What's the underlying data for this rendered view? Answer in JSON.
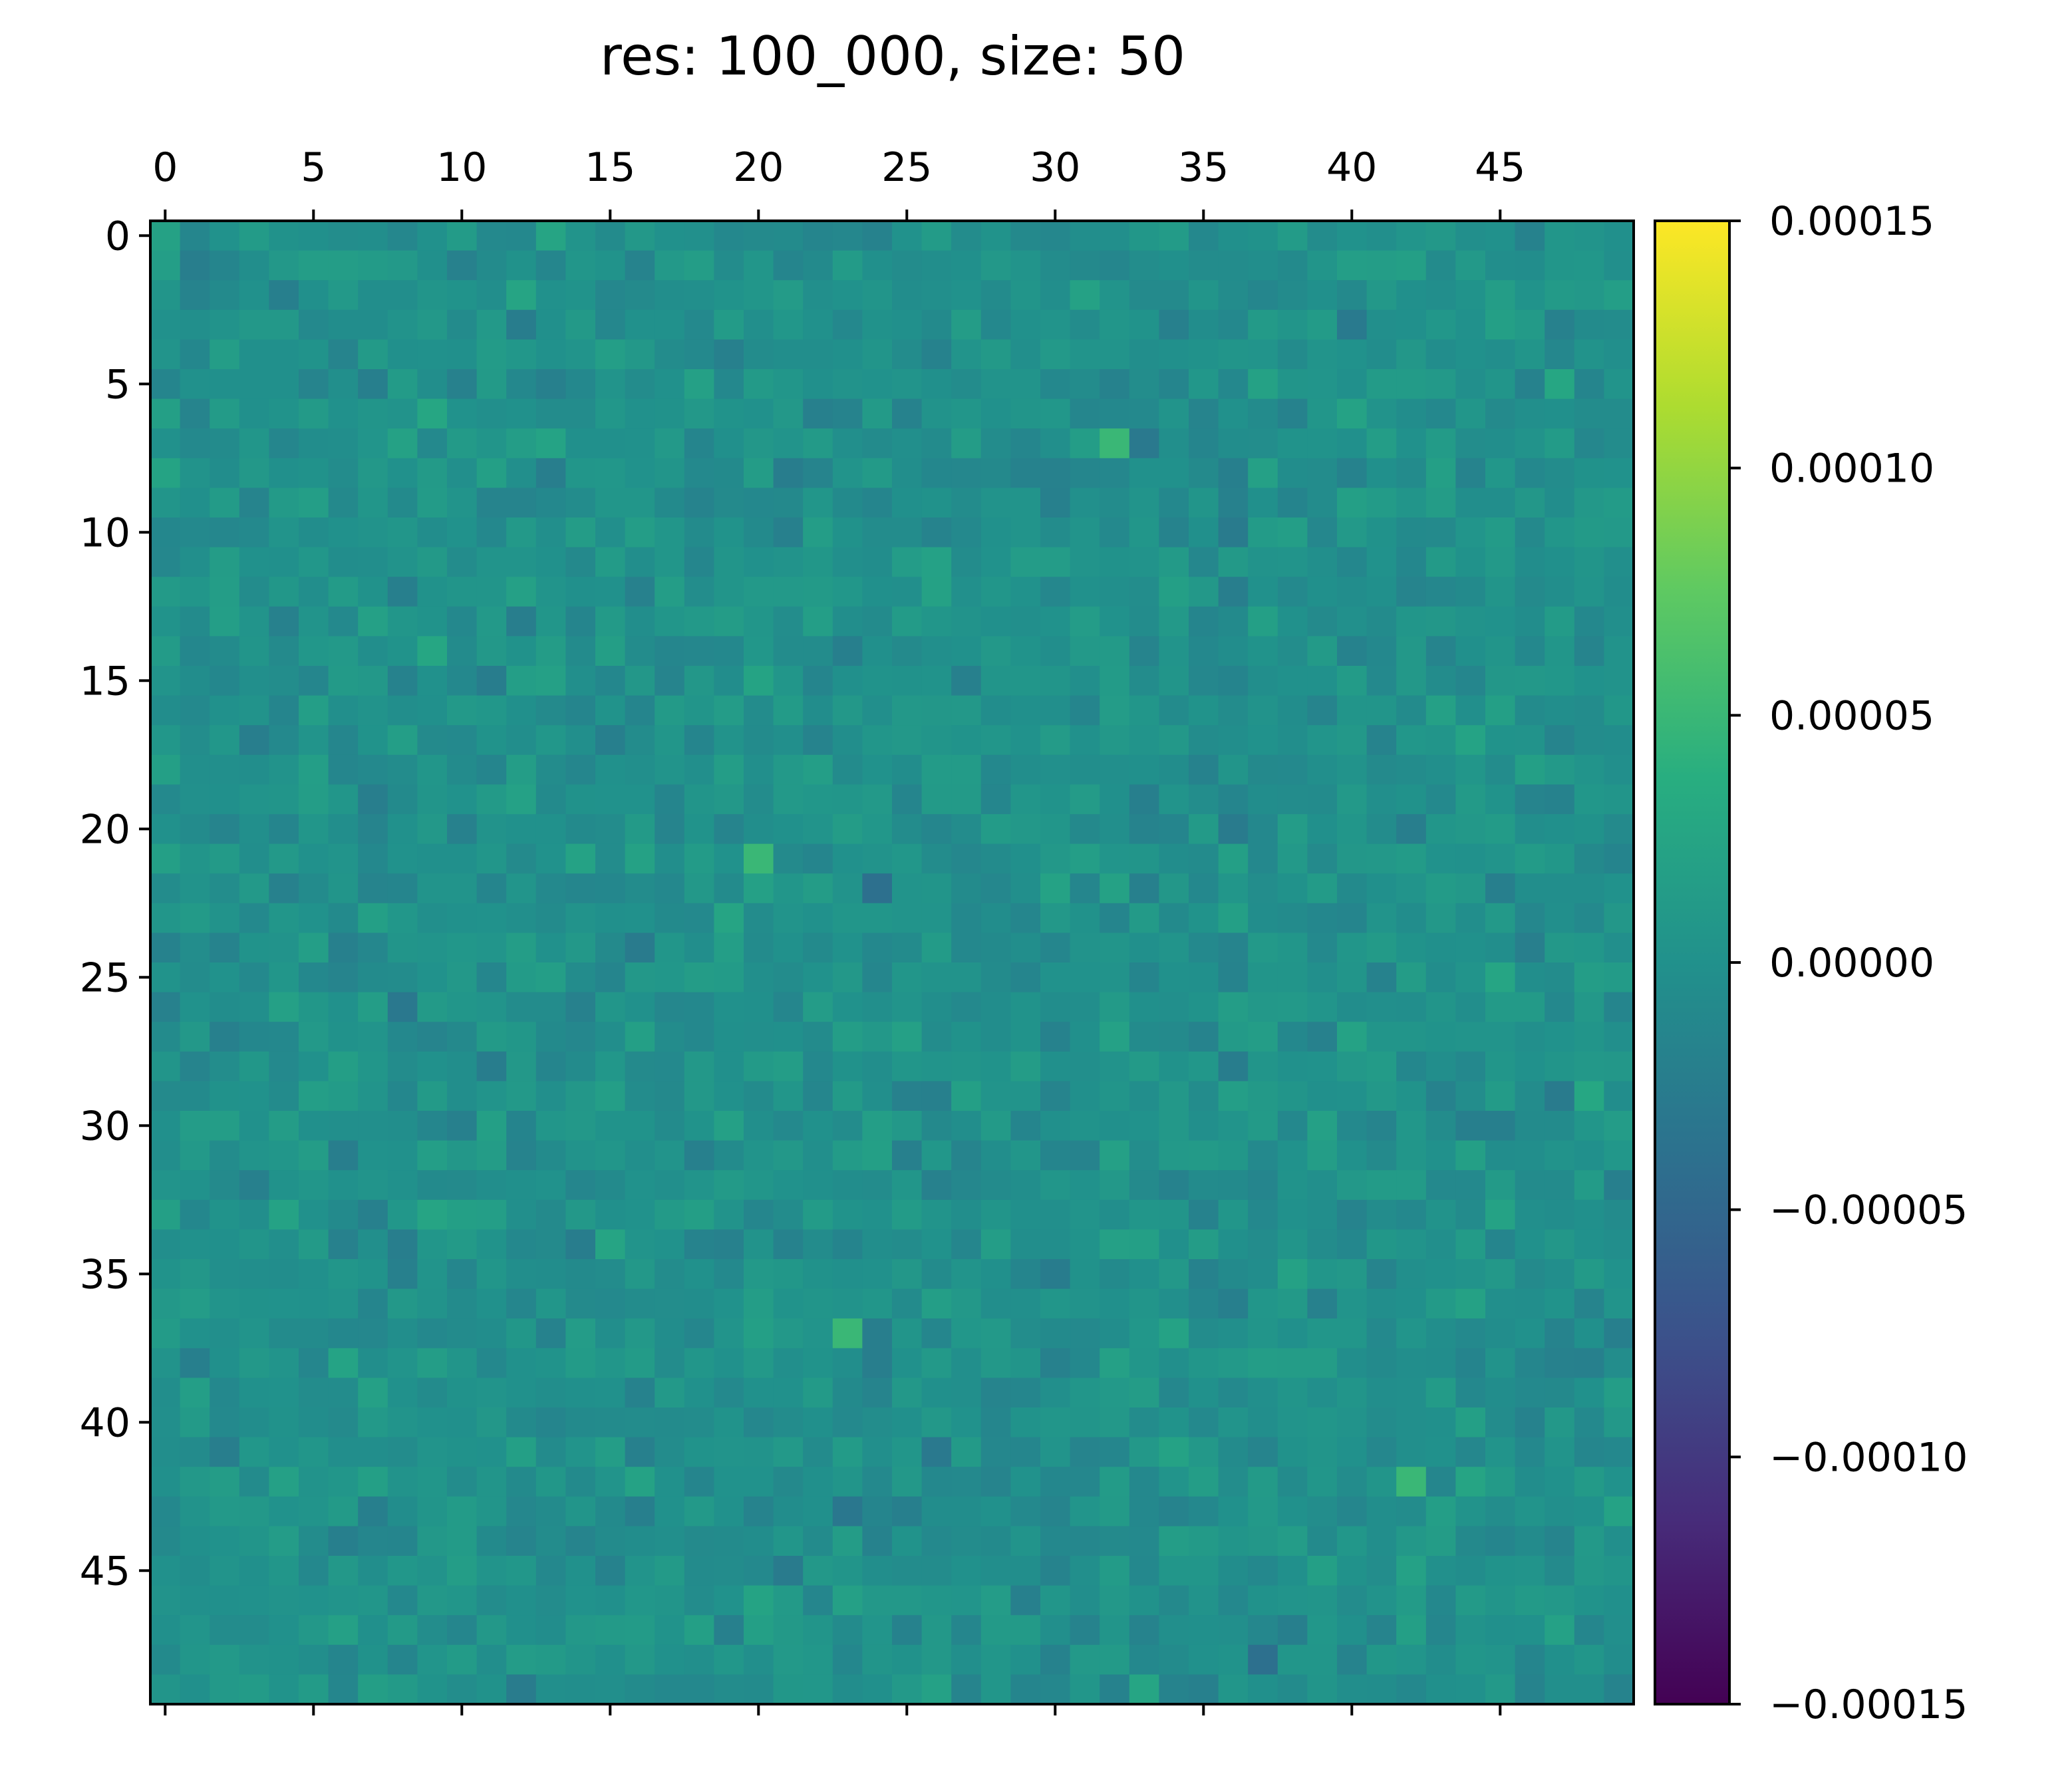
{
  "chart_data": {
    "type": "heatmap",
    "title": "res: 100_000, size: 50",
    "rows": 50,
    "cols": 50,
    "x_ticks": [
      0,
      5,
      10,
      15,
      20,
      25,
      30,
      35,
      40,
      45
    ],
    "x_tick_labels": [
      "0",
      "5",
      "10",
      "15",
      "20",
      "25",
      "30",
      "35",
      "40",
      "45"
    ],
    "y_ticks": [
      0,
      5,
      10,
      15,
      20,
      25,
      30,
      35,
      40,
      45
    ],
    "y_tick_labels": [
      "0",
      "5",
      "10",
      "15",
      "20",
      "25",
      "30",
      "35",
      "40",
      "45"
    ],
    "x_axis_position": "top",
    "colormap": "viridis",
    "colorbar": {
      "vmin": -0.00015,
      "vmax": 0.00015,
      "ticks": [
        0.00015,
        0.0001,
        5e-05,
        0.0,
        -5e-05,
        -0.0001,
        -0.00015
      ],
      "tick_labels": [
        "0.00015",
        "0.00010",
        "0.00005",
        "0.00000",
        "−0.00005",
        "−0.00010",
        "−0.00015"
      ],
      "placement": "right"
    },
    "value_distribution": {
      "mean": 0.0,
      "std": 1e-05,
      "note": "cells are approximately zero-mean noise, roughly within -0.00006 to 0.00006"
    },
    "highlight_cells": [
      {
        "row": 7,
        "col": 32,
        "value": 5e-05
      },
      {
        "row": 21,
        "col": 20,
        "value": 5e-05
      },
      {
        "row": 37,
        "col": 23,
        "value": 5e-05
      },
      {
        "row": 42,
        "col": 42,
        "value": 5e-05
      },
      {
        "row": 22,
        "col": 24,
        "value": -4e-05
      },
      {
        "row": 48,
        "col": 37,
        "value": -4e-05
      }
    ]
  }
}
